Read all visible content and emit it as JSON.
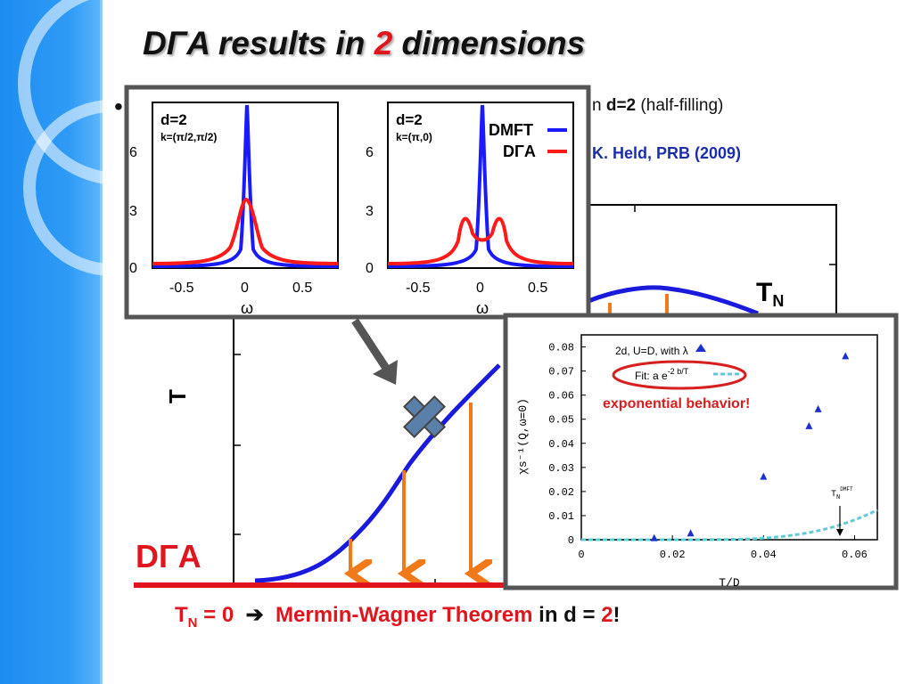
{
  "slide": {
    "title_pre": "DΓA results in ",
    "title_num": "2",
    "title_post": " dimensions",
    "bullet_glyph": "•",
    "subtitle_pre": "n ",
    "subtitle_bold": "d=2",
    "subtitle_post": " (half-filling)",
    "reference": "K. Held, PRB (2009)",
    "dga_label": "DΓA",
    "bottom": {
      "tn": "T",
      "tn_sub": "N",
      "eq_zero": " = 0",
      "arrow": "➔",
      "theorem": "Mermin-Wagner Theorem",
      "in_d": " in d = ",
      "dim": "2",
      "bang": "!"
    }
  },
  "phase_diagram": {
    "ylabel": "T",
    "curve_label": "T",
    "curve_label_sub": "N"
  },
  "spectra_inset": {
    "panels": [
      {
        "label_d": "d=2",
        "label_k": "k=(π/2,π/2)"
      },
      {
        "label_d": "d=2",
        "label_k": "k=(π,0)"
      }
    ],
    "yticks": [
      "6",
      "3",
      "0"
    ],
    "xticks": [
      "-0.5",
      "0",
      "0.5"
    ],
    "xlabel": "ω",
    "legend": [
      "DMFT",
      "DΓA"
    ],
    "colors": {
      "DMFT": "#1a1aff",
      "DGA": "#ff1a1a"
    }
  },
  "chart_data": {
    "type": "scatter",
    "xlabel": "T/D",
    "ylabel": "χs⁻¹(Q,ω=0)",
    "xlim": [
      0,
      0.065
    ],
    "ylim": [
      0,
      0.085
    ],
    "xticks": [
      "0",
      "0.02",
      "0.04",
      "0.06"
    ],
    "yticks": [
      "0",
      "0.01",
      "0.02",
      "0.03",
      "0.04",
      "0.05",
      "0.06",
      "0.07",
      "0.08"
    ],
    "series": [
      {
        "name": "2d, U=D, with λ",
        "x": [
          0.016,
          0.024,
          0.04,
          0.05,
          0.052,
          0.058
        ],
        "y": [
          0.0005,
          0.0025,
          0.026,
          0.047,
          0.054,
          0.076
        ]
      }
    ],
    "fit_legend_pre": "Fit:  a e",
    "fit_legend_exp": "-2 b/T",
    "annotation": "exponential behavior!",
    "tn_marker": "T",
    "tn_marker_sub": "N",
    "tn_marker_sup": "DMFT",
    "tn_marker_x": 0.056
  }
}
